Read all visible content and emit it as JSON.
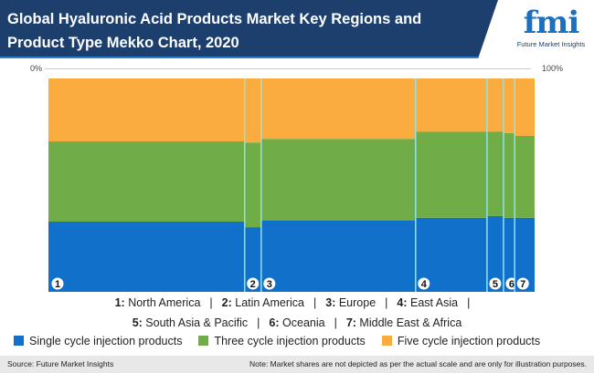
{
  "header": {
    "title": "Global Hyaluronic Acid Products Market Key Regions and Product Type Mekko Chart, 2020",
    "logo_text": "fmi",
    "logo_sub": "Future Market Insights"
  },
  "chart_data": {
    "type": "mekko",
    "title": "Global Hyaluronic Acid Products Market Key Regions and Product Type Mekko Chart, 2020",
    "x_axis": {
      "min_label": "0%",
      "max_label": "100%"
    },
    "categories": [
      "1",
      "2",
      "3",
      "4",
      "5",
      "6",
      "7"
    ],
    "category_names": [
      "North America",
      "Latin America",
      "Europe",
      "East Asia",
      "South Asia & Pacific",
      "Oceania",
      "Middle East & Africa"
    ],
    "widths": [
      40.4,
      3.4,
      31.8,
      14.7,
      3.4,
      2.3,
      4.1
    ],
    "series": [
      {
        "name": "Single cycle injection products",
        "color": "#1170c9",
        "values": [
          32.9,
          30.3,
          33.5,
          34.7,
          35.5,
          34.7,
          34.7
        ]
      },
      {
        "name": "Three cycle injection products",
        "color": "#70ad47",
        "values": [
          37.6,
          39.7,
          38.2,
          40.3,
          39.5,
          39.7,
          38.4
        ]
      },
      {
        "name": "Five cycle injection products",
        "color": "#fbac3e",
        "values": [
          29.5,
          30.0,
          28.3,
          25.0,
          25.0,
          25.6,
          26.9
        ]
      }
    ]
  },
  "legend_rows": [
    [
      "1: North America",
      "2: Latin America",
      "3: Europe",
      "4: East Asia"
    ],
    [
      "5: South Asia & Pacific",
      "6: Oceania",
      "7: Middle East & Africa"
    ]
  ],
  "separator": "|",
  "footer": {
    "source": "Source: Future Market Insights",
    "note": "Note: Market shares are not depicted as per the actual scale and are only for illustration purposes."
  }
}
